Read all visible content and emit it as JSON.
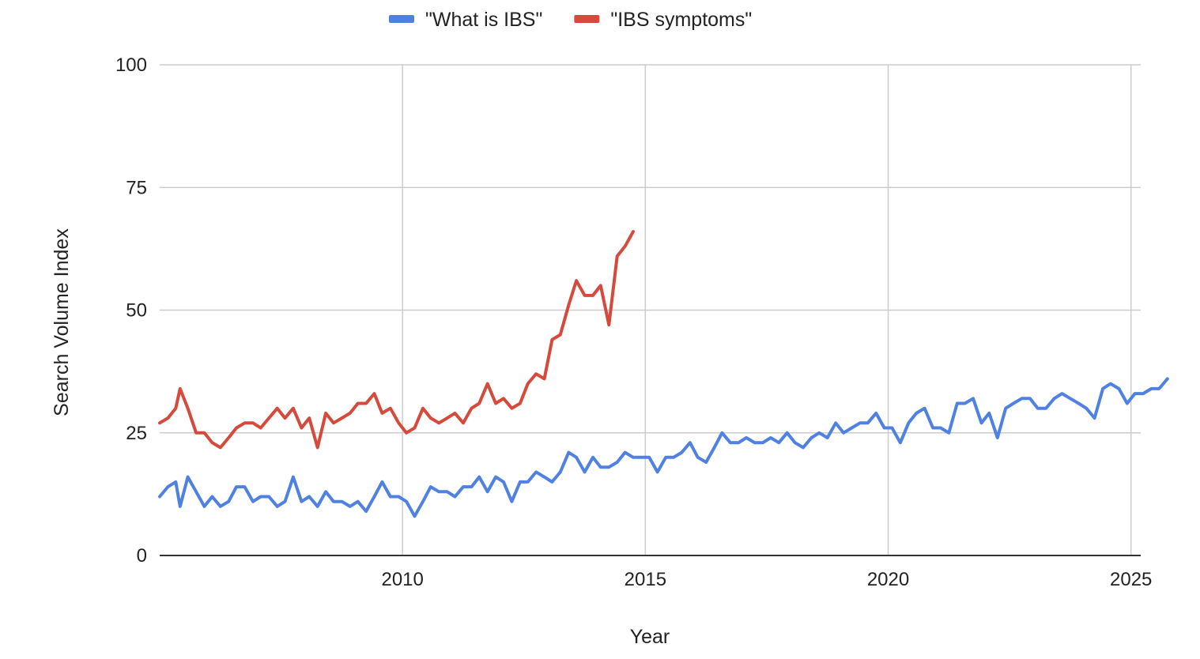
{
  "chart_data": {
    "type": "line",
    "xlabel": "Year",
    "ylabel": "Search Volume Index",
    "xlim": [
      2005.0,
      2025.2
    ],
    "ylim": [
      0,
      100
    ],
    "x_ticks": [
      2010,
      2015,
      2020,
      2025
    ],
    "y_ticks": [
      0,
      25,
      50,
      75,
      100
    ],
    "grid": true,
    "legend_position": "top",
    "series": [
      {
        "name": "\"What is IBS\"",
        "color": "#4f81e3",
        "points": [
          [
            2005.0,
            12
          ],
          [
            2005.17,
            14
          ],
          [
            2005.33,
            15
          ],
          [
            2005.42,
            10
          ],
          [
            2005.58,
            16
          ],
          [
            2005.75,
            13
          ],
          [
            2005.92,
            10
          ],
          [
            2006.08,
            12
          ],
          [
            2006.25,
            10
          ],
          [
            2006.42,
            11
          ],
          [
            2006.58,
            14
          ],
          [
            2006.75,
            14
          ],
          [
            2006.92,
            11
          ],
          [
            2007.08,
            12
          ],
          [
            2007.25,
            12
          ],
          [
            2007.42,
            10
          ],
          [
            2007.58,
            11
          ],
          [
            2007.75,
            16
          ],
          [
            2007.92,
            11
          ],
          [
            2008.08,
            12
          ],
          [
            2008.25,
            10
          ],
          [
            2008.42,
            13
          ],
          [
            2008.58,
            11
          ],
          [
            2008.75,
            11
          ],
          [
            2008.92,
            10
          ],
          [
            2009.08,
            11
          ],
          [
            2009.25,
            9
          ],
          [
            2009.42,
            12
          ],
          [
            2009.58,
            15
          ],
          [
            2009.75,
            12
          ],
          [
            2009.92,
            12
          ],
          [
            2010.08,
            11
          ],
          [
            2010.25,
            8
          ],
          [
            2010.42,
            11
          ],
          [
            2010.58,
            14
          ],
          [
            2010.75,
            13
          ],
          [
            2010.92,
            13
          ],
          [
            2011.08,
            12
          ],
          [
            2011.25,
            14
          ],
          [
            2011.42,
            14
          ],
          [
            2011.58,
            16
          ],
          [
            2011.75,
            13
          ],
          [
            2011.92,
            16
          ],
          [
            2012.08,
            15
          ],
          [
            2012.25,
            11
          ],
          [
            2012.42,
            15
          ],
          [
            2012.58,
            15
          ],
          [
            2012.75,
            17
          ],
          [
            2012.92,
            16
          ],
          [
            2013.08,
            15
          ],
          [
            2013.25,
            17
          ],
          [
            2013.42,
            21
          ],
          [
            2013.58,
            20
          ],
          [
            2013.75,
            17
          ],
          [
            2013.92,
            20
          ],
          [
            2014.08,
            18
          ],
          [
            2014.25,
            18
          ],
          [
            2014.42,
            19
          ],
          [
            2014.58,
            21
          ],
          [
            2014.75,
            20
          ],
          [
            2014.92,
            20
          ],
          [
            2015.08,
            20
          ],
          [
            2015.25,
            17
          ],
          [
            2015.42,
            20
          ],
          [
            2015.58,
            20
          ],
          [
            2015.75,
            21
          ],
          [
            2015.92,
            23
          ],
          [
            2016.08,
            20
          ],
          [
            2016.25,
            19
          ],
          [
            2016.42,
            22
          ],
          [
            2016.58,
            25
          ],
          [
            2016.75,
            23
          ],
          [
            2016.92,
            23
          ],
          [
            2017.08,
            24
          ],
          [
            2017.25,
            23
          ],
          [
            2017.42,
            23
          ],
          [
            2017.58,
            24
          ],
          [
            2017.75,
            23
          ],
          [
            2017.92,
            25
          ],
          [
            2018.08,
            23
          ],
          [
            2018.25,
            22
          ],
          [
            2018.42,
            24
          ],
          [
            2018.58,
            25
          ],
          [
            2018.75,
            24
          ],
          [
            2018.92,
            27
          ],
          [
            2019.08,
            25
          ],
          [
            2019.25,
            26
          ],
          [
            2019.42,
            27
          ],
          [
            2019.58,
            27
          ],
          [
            2019.75,
            29
          ],
          [
            2019.92,
            26
          ],
          [
            2020.08,
            26
          ],
          [
            2020.25,
            23
          ],
          [
            2020.42,
            27
          ],
          [
            2020.58,
            29
          ],
          [
            2020.75,
            30
          ],
          [
            2020.92,
            26
          ],
          [
            2021.08,
            26
          ],
          [
            2021.25,
            25
          ],
          [
            2021.42,
            31
          ],
          [
            2021.58,
            31
          ],
          [
            2021.75,
            32
          ],
          [
            2021.92,
            27
          ],
          [
            2022.08,
            29
          ],
          [
            2022.25,
            24
          ],
          [
            2022.42,
            30
          ],
          [
            2022.58,
            31
          ],
          [
            2022.75,
            32
          ],
          [
            2022.92,
            32
          ],
          [
            2023.08,
            30
          ],
          [
            2023.25,
            30
          ],
          [
            2023.42,
            32
          ],
          [
            2023.58,
            33
          ],
          [
            2023.75,
            32
          ],
          [
            2023.92,
            31
          ],
          [
            2024.08,
            30
          ],
          [
            2024.25,
            28
          ],
          [
            2024.42,
            34
          ],
          [
            2024.58,
            35
          ],
          [
            2024.75,
            34
          ],
          [
            2024.92,
            31
          ],
          [
            2025.08,
            33
          ],
          [
            2025.25,
            33
          ],
          [
            2025.42,
            34
          ],
          [
            2025.58,
            34
          ],
          [
            2025.75,
            36
          ]
        ]
      },
      {
        "name": "\"IBS symptoms\"",
        "color": "#d64a3b",
        "points": [
          [
            2005.0,
            27
          ],
          [
            2005.17,
            28
          ],
          [
            2005.33,
            30
          ],
          [
            2005.42,
            34
          ],
          [
            2005.58,
            30
          ],
          [
            2005.75,
            25
          ],
          [
            2005.92,
            25
          ],
          [
            2006.08,
            23
          ],
          [
            2006.25,
            22
          ],
          [
            2006.42,
            24
          ],
          [
            2006.58,
            26
          ],
          [
            2006.75,
            27
          ],
          [
            2006.92,
            27
          ],
          [
            2007.08,
            26
          ],
          [
            2007.25,
            28
          ],
          [
            2007.42,
            30
          ],
          [
            2007.58,
            28
          ],
          [
            2007.75,
            30
          ],
          [
            2007.92,
            26
          ],
          [
            2008.08,
            28
          ],
          [
            2008.25,
            22
          ],
          [
            2008.42,
            29
          ],
          [
            2008.58,
            27
          ],
          [
            2008.75,
            28
          ],
          [
            2008.92,
            29
          ],
          [
            2009.08,
            31
          ],
          [
            2009.25,
            31
          ],
          [
            2009.42,
            33
          ],
          [
            2009.58,
            29
          ],
          [
            2009.75,
            30
          ],
          [
            2009.92,
            27
          ],
          [
            2010.08,
            25
          ],
          [
            2010.25,
            26
          ],
          [
            2010.42,
            30
          ],
          [
            2010.58,
            28
          ],
          [
            2010.75,
            27
          ],
          [
            2010.92,
            28
          ],
          [
            2011.08,
            29
          ],
          [
            2011.25,
            27
          ],
          [
            2011.42,
            30
          ],
          [
            2011.58,
            31
          ],
          [
            2011.75,
            35
          ],
          [
            2011.92,
            31
          ],
          [
            2012.08,
            32
          ],
          [
            2012.25,
            30
          ],
          [
            2012.42,
            31
          ],
          [
            2012.58,
            35
          ],
          [
            2012.75,
            37
          ],
          [
            2012.92,
            36
          ],
          [
            2013.08,
            44
          ],
          [
            2013.25,
            45
          ],
          [
            2013.42,
            51
          ],
          [
            2013.58,
            56
          ],
          [
            2013.75,
            53
          ],
          [
            2013.92,
            53
          ],
          [
            2014.08,
            55
          ],
          [
            2014.25,
            47
          ],
          [
            2014.42,
            61
          ],
          [
            2014.58,
            63
          ],
          [
            2014.75,
            66
          ]
        ]
      }
    ]
  }
}
